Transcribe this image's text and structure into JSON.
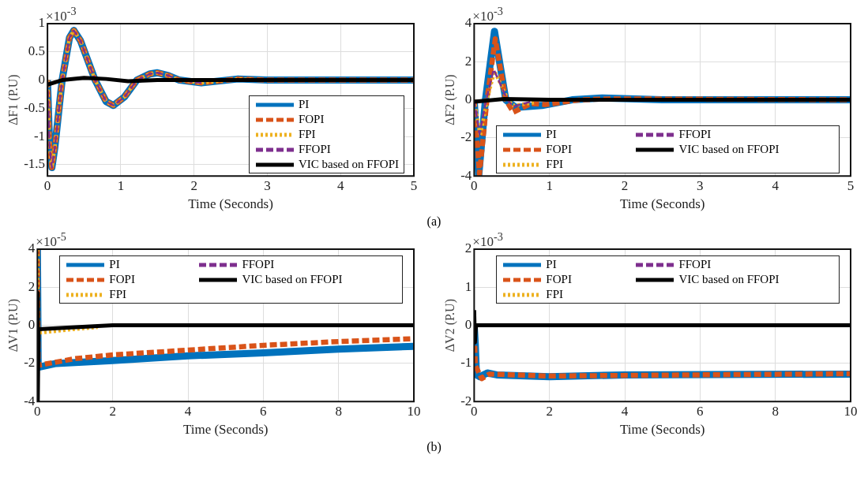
{
  "chart_data": [
    {
      "type": "line",
      "xlabel": "Time (Seconds)",
      "ylabel": "ΔF1 (P.U)",
      "annotations": [
        "×10$^{-3}$",
        "(a)"
      ],
      "xlim": [
        0,
        5
      ],
      "xticks": [
        0,
        1,
        2,
        3,
        4,
        5
      ],
      "ylim": [
        -1.7,
        1
      ],
      "yticks": [
        -1.5,
        -1,
        -0.5,
        0,
        0.5,
        1
      ],
      "grid": true,
      "legend": "bottom right",
      "series": [
        {
          "name": "PI",
          "color": "#0072bd",
          "line_style": "solid",
          "x": [
            0,
            0.03,
            0.06,
            0.1,
            0.2,
            0.3,
            0.36,
            0.45,
            0.65,
            0.8,
            0.9,
            1.05,
            1.22,
            1.4,
            1.5,
            1.65,
            1.8,
            2.1,
            2.6,
            3,
            5
          ],
          "values": [
            0,
            -1.2,
            -1.55,
            -1.2,
            0,
            0.75,
            0.88,
            0.7,
            0,
            -0.38,
            -0.45,
            -0.3,
            0,
            0.11,
            0.13,
            0.08,
            0,
            -0.05,
            0.02,
            0,
            0
          ]
        },
        {
          "name": "FOPI",
          "color": "#d95319",
          "line_style": "dashed",
          "x": [
            0,
            0.03,
            0.06,
            0.1,
            0.2,
            0.3,
            0.36,
            0.45,
            0.65,
            0.8,
            0.9,
            1.05,
            1.22,
            1.4,
            1.5,
            1.65,
            1.8,
            2.1,
            2.6,
            3,
            5
          ],
          "values": [
            0,
            -1.2,
            -1.55,
            -1.2,
            0,
            0.75,
            0.88,
            0.7,
            0,
            -0.38,
            -0.45,
            -0.3,
            0,
            0.11,
            0.13,
            0.08,
            0,
            -0.05,
            0.02,
            0,
            0
          ]
        },
        {
          "name": "FPI",
          "color": "#edb120",
          "line_style": "dotted",
          "x": [
            0,
            0.03,
            0.06,
            0.1,
            0.2,
            0.3,
            0.36,
            0.45,
            0.65,
            0.8,
            0.9,
            1.05,
            1.22,
            1.4,
            1.5,
            1.65,
            1.8,
            2.1,
            2.6,
            3,
            5
          ],
          "values": [
            0,
            -1.2,
            -1.55,
            -1.2,
            0,
            0.75,
            0.88,
            0.7,
            0,
            -0.38,
            -0.45,
            -0.3,
            0,
            0.11,
            0.13,
            0.08,
            0,
            -0.05,
            0.02,
            0,
            0
          ]
        },
        {
          "name": "FFOPI",
          "color": "#7e2f8e",
          "line_style": "dashed",
          "x": [
            0,
            0.03,
            0.06,
            0.1,
            0.2,
            0.3,
            0.36,
            0.45,
            0.65,
            0.8,
            0.9,
            1.05,
            1.22,
            1.4,
            1.5,
            1.65,
            1.8,
            2.1
          ],
          "values": [
            0,
            -1.2,
            -1.55,
            -1.2,
            0,
            0.75,
            0.88,
            0.7,
            0,
            -0.38,
            -0.45,
            -0.3,
            0,
            0.11,
            0.13,
            0.08,
            0,
            -0.05
          ]
        },
        {
          "name": "VIC based on FFOPI",
          "color": "#000000",
          "line_style": "solid",
          "x": [
            0,
            0.2,
            0.5,
            0.8,
            1.1,
            1.5,
            2,
            5
          ],
          "values": [
            -0.08,
            0,
            0.04,
            0.02,
            -0.02,
            0,
            0,
            0
          ]
        }
      ]
    },
    {
      "type": "line",
      "xlabel": "Time (Seconds)",
      "ylabel": "ΔF2 (P.U)",
      "annotations": [
        "×10$^{-3}$"
      ],
      "xlim": [
        0,
        5
      ],
      "xticks": [
        0,
        1,
        2,
        3,
        4,
        5
      ],
      "ylim": [
        -4,
        4
      ],
      "yticks": [
        -4,
        -2,
        0,
        2,
        4
      ],
      "grid": true,
      "legend": "bottom",
      "series": [
        {
          "name": "PI",
          "color": "#0072bd",
          "line_style": "solid",
          "x": [
            0,
            0.06,
            0.15,
            0.27,
            0.42,
            0.55,
            0.9,
            1.3,
            1.7,
            2.5,
            5
          ],
          "values": [
            0,
            -4,
            0,
            3.6,
            0,
            -0.4,
            -0.3,
            0,
            0.1,
            0,
            0
          ]
        },
        {
          "name": "FOPI",
          "color": "#d95319",
          "line_style": "dashed",
          "x": [
            0,
            0.07,
            0.17,
            0.28,
            0.42,
            0.52,
            0.75,
            0.95,
            1.4,
            1.8,
            5
          ],
          "values": [
            0,
            -3.9,
            0,
            3.2,
            0,
            -0.65,
            -0.2,
            -0.25,
            0,
            0.05,
            0
          ]
        },
        {
          "name": "FPI",
          "color": "#edb120",
          "line_style": "dotted",
          "x": [
            0,
            0.08,
            0.17,
            0.27,
            0.45,
            0.52,
            0.8
          ],
          "values": [
            0,
            -1.9,
            0,
            1.5,
            0,
            -0.3,
            -0.15
          ]
        },
        {
          "name": "FFOPI",
          "color": "#7e2f8e",
          "line_style": "dashed",
          "x": [
            0,
            0.07,
            0.16,
            0.26,
            0.44,
            0.52,
            0.75
          ],
          "values": [
            0,
            -1.8,
            0,
            1.6,
            0,
            -0.35,
            -0.1
          ]
        },
        {
          "name": "VIC based on FFOPI",
          "color": "#000000",
          "line_style": "solid",
          "x": [
            0,
            0.4,
            1,
            5
          ],
          "values": [
            -0.1,
            0.05,
            0,
            0
          ]
        }
      ]
    },
    {
      "type": "line",
      "xlabel": "Time (Seconds)",
      "ylabel": "ΔV1 (P.U)",
      "annotations": [
        "×10$^{-5}$",
        "(b)"
      ],
      "xlim": [
        0,
        10
      ],
      "xticks": [
        0,
        2,
        4,
        6,
        8,
        10
      ],
      "ylim": [
        -4,
        4
      ],
      "yticks": [
        -4,
        -2,
        0,
        2,
        4
      ],
      "grid": true,
      "legend": "top",
      "series": [
        {
          "name": "PI",
          "color": "#0072bd",
          "line_style": "solid",
          "x": [
            0,
            0.02,
            0.5,
            2,
            4,
            6,
            8,
            10
          ],
          "values": [
            4,
            -2.2,
            -2,
            -1.85,
            -1.6,
            -1.45,
            -1.25,
            -1.1
          ]
        },
        {
          "name": "FOPI",
          "color": "#d95319",
          "line_style": "dashed",
          "x": [
            0,
            0.02,
            1,
            2,
            4,
            6,
            8,
            10
          ],
          "values": [
            4,
            -2.1,
            -1.75,
            -1.55,
            -1.3,
            -1.05,
            -0.85,
            -0.7
          ]
        },
        {
          "name": "FPI",
          "color": "#edb120",
          "line_style": "dotted",
          "x": [
            0,
            0.02,
            1,
            1.6
          ],
          "values": [
            4,
            -0.4,
            -0.2,
            -0.1
          ]
        },
        {
          "name": "FFOPI",
          "color": "#7e2f8e",
          "line_style": "dashed"
        },
        {
          "name": "VIC based on FFOPI",
          "color": "#000000",
          "line_style": "solid",
          "x": [
            0,
            0.01,
            0.03,
            1,
            2,
            10
          ],
          "values": [
            1.7,
            -4,
            -0.2,
            -0.1,
            0,
            0
          ]
        }
      ]
    },
    {
      "type": "line",
      "xlabel": "Time (Seconds)",
      "ylabel": "ΔV2 (P.U)",
      "annotations": [
        "×10$^{-3}$"
      ],
      "xlim": [
        0,
        10
      ],
      "xticks": [
        0,
        2,
        4,
        6,
        8,
        10
      ],
      "ylim": [
        -2,
        2
      ],
      "yticks": [
        -2,
        -1,
        0,
        1,
        2
      ],
      "grid": true,
      "legend": "top",
      "series": [
        {
          "name": "PI",
          "color": "#0072bd",
          "line_style": "solid",
          "x": [
            0,
            0.03,
            0.06,
            0.15,
            0.35,
            0.6,
            2,
            4,
            10
          ],
          "values": [
            0,
            -0.5,
            -1.3,
            -1.35,
            -1.25,
            -1.3,
            -1.35,
            -1.3,
            -1.28
          ]
        },
        {
          "name": "FOPI",
          "color": "#d95319",
          "line_style": "dashed",
          "x": [
            0,
            0.03,
            0.2,
            0.4,
            2,
            10
          ],
          "values": [
            0,
            -1.05,
            -1.4,
            -1.28,
            -1.33,
            -1.27
          ]
        },
        {
          "name": "FPI",
          "color": "#edb120",
          "line_style": "dotted"
        },
        {
          "name": "FFOPI",
          "color": "#7e2f8e",
          "line_style": "dashed"
        },
        {
          "name": "VIC based on FFOPI",
          "color": "#000000",
          "line_style": "solid",
          "x": [
            0,
            0.02,
            0.05,
            10
          ],
          "values": [
            0.4,
            -0.45,
            0,
            0
          ]
        }
      ]
    }
  ]
}
